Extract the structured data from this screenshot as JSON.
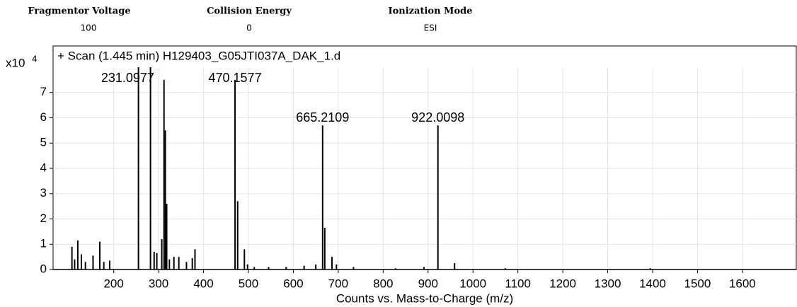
{
  "parameters": [
    {
      "label": "Fragmentor Voltage",
      "value": "100"
    },
    {
      "label": "Collision Energy",
      "value": "0"
    },
    {
      "label": "Ionization Mode",
      "value": "ESI"
    }
  ],
  "chart_data": {
    "type": "bar",
    "title": "+ Scan (1.445 min) H129403_G05JTI037A_DAK_1.d",
    "x_label": "Counts vs. Mass-to-Charge (m/z)",
    "y_multiplier": "x10",
    "y_multiplier_exponent": 4,
    "x": [
      107,
      113,
      120,
      128,
      137,
      154,
      169,
      178,
      191,
      255.1,
      281.9,
      290,
      296,
      307,
      312,
      315,
      318,
      324,
      334,
      345,
      362,
      375,
      381,
      470.1577,
      476,
      491,
      498,
      513,
      545,
      584,
      624,
      650,
      665.2109,
      670,
      686,
      696,
      734,
      828,
      891,
      922.0098,
      959,
      1072,
      1395
    ],
    "values": [
      0.9,
      0.4,
      1.15,
      0.6,
      0.3,
      0.55,
      1.1,
      0.3,
      0.35,
      8.5,
      8.5,
      0.7,
      0.65,
      1.2,
      7.5,
      5.5,
      2.6,
      0.4,
      0.5,
      0.5,
      0.3,
      0.45,
      0.8,
      7.5,
      2.7,
      0.8,
      0.2,
      0.1,
      0.1,
      0.1,
      0.15,
      0.2,
      5.7,
      1.65,
      0.5,
      0.2,
      0.1,
      0.05,
      0.1,
      5.7,
      0.25,
      0.05,
      0.05
    ],
    "annotations": [
      231.0977,
      470.1577,
      665.2109,
      922.0098
    ],
    "color": "#000000",
    "xlim": [
      65,
      1720
    ],
    "xticks": [
      200,
      300,
      400,
      500,
      600,
      700,
      800,
      900,
      1000,
      1100,
      1200,
      1300,
      1400,
      1500,
      1600
    ],
    "ylim": [
      0,
      8
    ],
    "yticks": [
      0,
      1,
      2,
      3,
      4,
      5,
      6,
      7
    ],
    "grid": true
  }
}
